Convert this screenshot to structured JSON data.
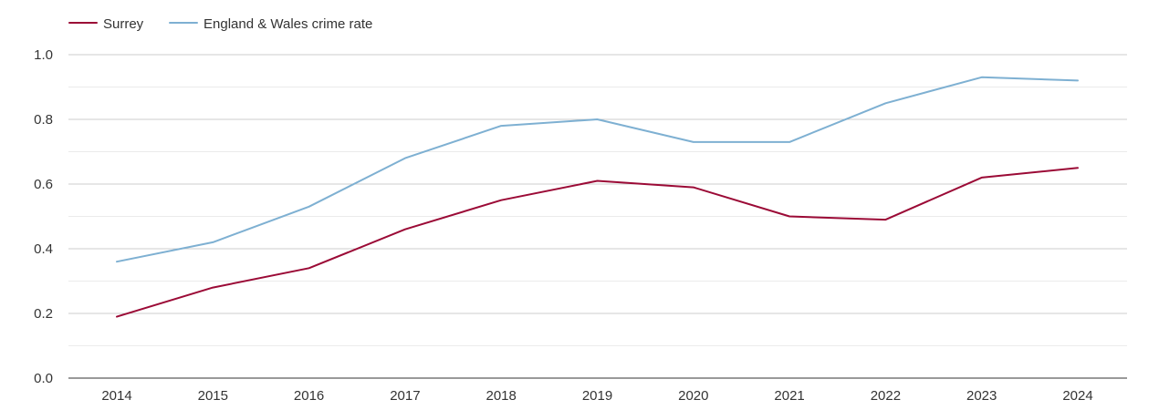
{
  "chart_data": {
    "type": "line",
    "title": "",
    "xlabel": "",
    "ylabel": "",
    "categories": [
      "2014",
      "2015",
      "2016",
      "2017",
      "2018",
      "2019",
      "2020",
      "2021",
      "2022",
      "2023",
      "2024"
    ],
    "ylim": [
      0,
      1
    ],
    "yticks": [
      "0.0",
      "0.2",
      "0.4",
      "0.6",
      "0.8",
      "1.0"
    ],
    "grid": true,
    "legend": "top-left",
    "series": [
      {
        "name": "Surrey",
        "color": "#9b0a36",
        "values": [
          0.19,
          0.28,
          0.34,
          0.46,
          0.55,
          0.61,
          0.59,
          0.5,
          0.49,
          0.62,
          0.65
        ]
      },
      {
        "name": "England & Wales crime rate",
        "color": "#7eb0d2",
        "values": [
          0.36,
          0.42,
          0.53,
          0.68,
          0.78,
          0.8,
          0.73,
          0.73,
          0.85,
          0.93,
          0.92
        ]
      }
    ]
  }
}
